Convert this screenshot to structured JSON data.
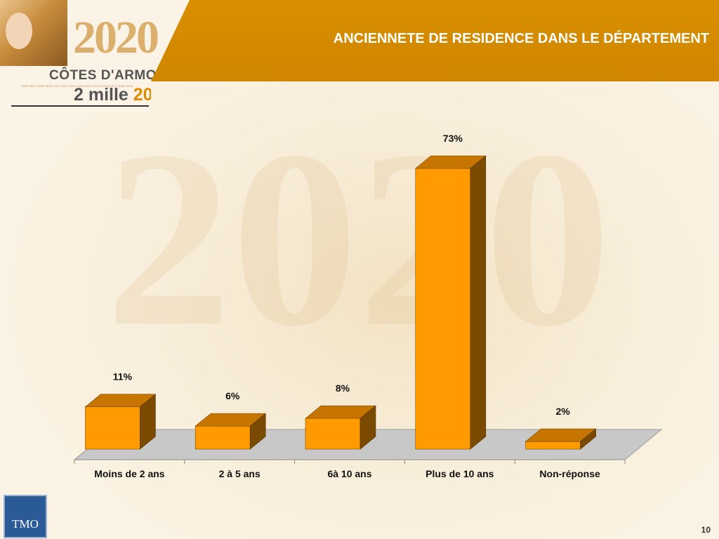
{
  "slide": {
    "title": "ANCIENNETE DE RESIDENCE DANS LE DÉPARTEMENT",
    "page_number": "10",
    "watermark": "2020"
  },
  "logo": {
    "year_graphic": "2020",
    "brand": "CÔTES D'ARMOR",
    "tagline_prefix": "2 mille ",
    "tagline_accent": "20",
    "year_strip": "2006 2007 2008 2009 2010 2011 2012 2013 2014 2015 2016 2017 2018 2019",
    "partner": "TMO"
  },
  "colors": {
    "header": "#d98f00",
    "bar_front": "#ff9a00",
    "bar_top": "#c67600",
    "bar_side": "#7a4a00",
    "floor": "#c8c8c8"
  },
  "chart_data": {
    "type": "bar",
    "categories": [
      "Moins de 2 ans",
      "2 à 5 ans",
      "6à 10 ans",
      "Plus de 10 ans",
      "Non-réponse"
    ],
    "values": [
      11,
      6,
      8,
      73,
      2
    ],
    "value_labels": [
      "11%",
      "6%",
      "8%",
      "73%",
      "2%"
    ],
    "unit": "%",
    "title": "ANCIENNETE DE RESIDENCE DANS LE DÉPARTEMENT",
    "ylim": [
      0,
      73
    ],
    "grid": false,
    "legend": "none",
    "style": "3d"
  }
}
